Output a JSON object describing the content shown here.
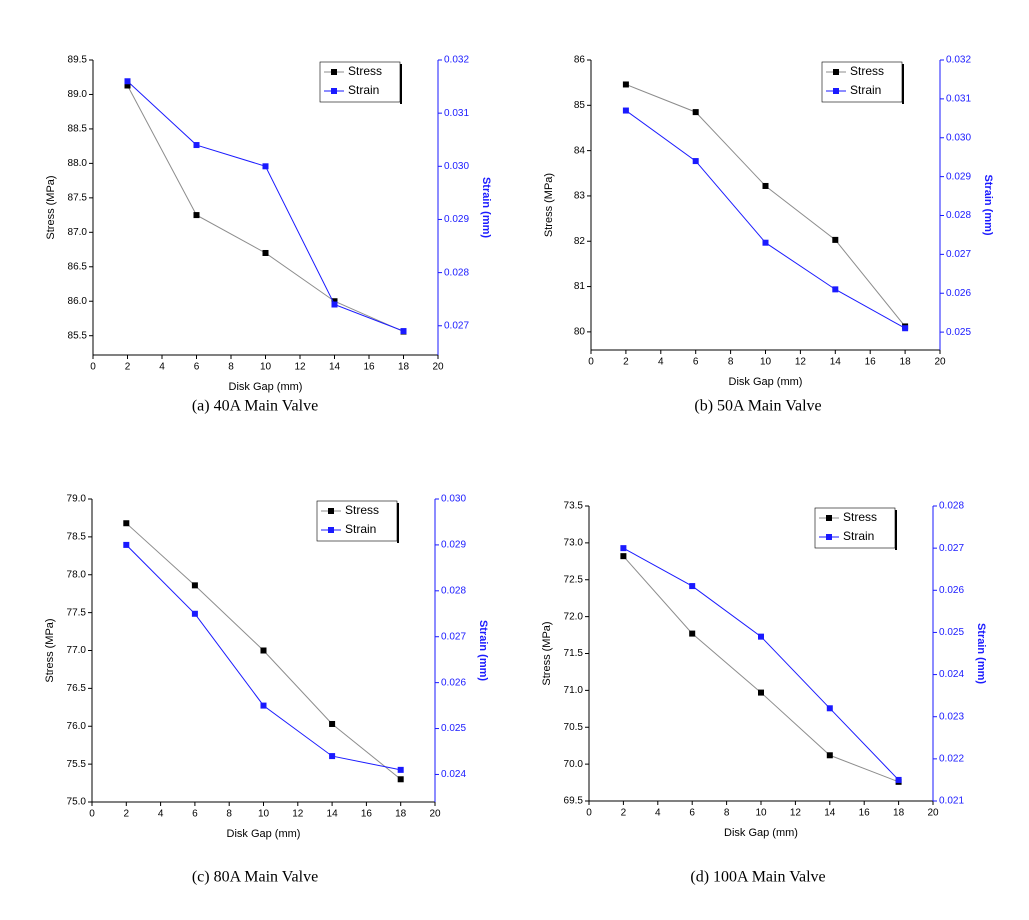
{
  "chart_data": [
    {
      "type": "line",
      "caption": "(a) 40A Main Valve",
      "xlabel": "Disk Gap (mm)",
      "ylabel": "Stress (MPa)",
      "y2label": "Strain (mm)",
      "x": [
        2,
        6,
        10,
        14,
        18
      ],
      "xlim": [
        0,
        20
      ],
      "xticks": [
        0,
        2,
        4,
        6,
        8,
        10,
        12,
        14,
        16,
        18,
        20
      ],
      "ylim": [
        85.22,
        89.5
      ],
      "yticks": [
        85.5,
        {
          "value": 86,
          "label": "86.0"
        },
        86.5,
        {
          "value": 87,
          "label": "87.0"
        },
        87.5,
        {
          "value": 88,
          "label": "88.0"
        },
        88.5,
        {
          "value": 89,
          "label": "89.0"
        },
        89.5
      ],
      "y2lim": [
        0.02645,
        0.032
      ],
      "y2ticks": [
        0.027,
        0.028,
        0.029,
        {
          "value": 0.03,
          "label": "0.030"
        },
        0.031,
        0.032
      ],
      "legend": "upper right",
      "series": [
        {
          "name": "Stress",
          "color": "#000000",
          "values": [
            89.13,
            87.25,
            86.7,
            86.0,
            85.56
          ]
        },
        {
          "name": "Strain",
          "color": "#1a1aff",
          "axis": "y2",
          "values": [
            0.0316,
            0.0304,
            0.03,
            0.0274,
            0.0269
          ]
        }
      ]
    },
    {
      "type": "line",
      "caption": "(b) 50A Main Valve",
      "xlabel": "Disk Gap (mm)",
      "ylabel": "Stress (MPa)",
      "y2label": "Strain (mm)",
      "x": [
        2,
        6,
        10,
        14,
        18
      ],
      "xlim": [
        0,
        20
      ],
      "xticks": [
        0,
        2,
        4,
        6,
        8,
        10,
        12,
        14,
        16,
        18,
        20
      ],
      "ylim": [
        79.6,
        86
      ],
      "yticks": [
        80,
        81,
        82,
        83,
        84,
        85,
        86
      ],
      "y2lim": [
        0.02454,
        0.032
      ],
      "y2ticks": [
        0.025,
        0.026,
        0.027,
        0.028,
        0.029,
        {
          "value": 0.03,
          "label": "0.030"
        },
        0.031,
        0.032
      ],
      "legend": "upper right",
      "series": [
        {
          "name": "Stress",
          "color": "#000000",
          "values": [
            85.46,
            84.85,
            83.22,
            82.03,
            80.12
          ]
        },
        {
          "name": "Strain",
          "color": "#1a1aff",
          "axis": "y2",
          "values": [
            0.0307,
            0.0294,
            0.0273,
            0.0261,
            0.0251
          ]
        }
      ]
    },
    {
      "type": "line",
      "caption": "(c) 80A Main Valve",
      "xlabel": "Disk Gap (mm)",
      "ylabel": "Stress (MPa)",
      "y2label": "Strain (mm)",
      "x": [
        2,
        6,
        10,
        14,
        18
      ],
      "xlim": [
        0,
        20
      ],
      "xticks": [
        0,
        2,
        4,
        6,
        8,
        10,
        12,
        14,
        16,
        18,
        20
      ],
      "ylim": [
        75,
        79
      ],
      "yticks": [
        {
          "value": 75,
          "label": "75.0"
        },
        75.5,
        {
          "value": 76,
          "label": "76.0"
        },
        76.5,
        {
          "value": 77,
          "label": "77.0"
        },
        77.5,
        {
          "value": 78,
          "label": "78.0"
        },
        78.5,
        {
          "value": 79,
          "label": "79.0"
        }
      ],
      "y2lim": [
        0.0234,
        0.03
      ],
      "y2ticks": [
        0.024,
        0.025,
        0.026,
        0.027,
        0.028,
        0.029,
        {
          "value": 0.03,
          "label": "0.030"
        }
      ],
      "legend": "upper right",
      "series": [
        {
          "name": "Stress",
          "color": "#000000",
          "values": [
            78.68,
            77.86,
            77.0,
            76.03,
            75.3
          ]
        },
        {
          "name": "Strain",
          "color": "#1a1aff",
          "axis": "y2",
          "values": [
            0.029,
            0.0275,
            0.0255,
            0.0244,
            0.0241
          ]
        }
      ]
    },
    {
      "type": "line",
      "caption": "(d) 100A Main Valve",
      "xlabel": "Disk Gap (mm)",
      "ylabel": "Stress (MPa)",
      "y2label": "Strain (mm)",
      "x": [
        2,
        6,
        10,
        14,
        18
      ],
      "xlim": [
        0,
        20
      ],
      "xticks": [
        0,
        2,
        4,
        6,
        8,
        10,
        12,
        14,
        16,
        18,
        20
      ],
      "ylim": [
        69.5,
        73.5
      ],
      "yticks": [
        69.5,
        {
          "value": 70,
          "label": "70.0"
        },
        70.5,
        {
          "value": 71,
          "label": "71.0"
        },
        71.5,
        {
          "value": 72,
          "label": "72.0"
        },
        72.5,
        {
          "value": 73,
          "label": "73.0"
        },
        73.5
      ],
      "y2lim": [
        0.021,
        0.028
      ],
      "y2ticks": [
        0.021,
        0.022,
        0.023,
        0.024,
        0.025,
        0.026,
        0.027,
        0.028
      ],
      "legend": "upper right",
      "series": [
        {
          "name": "Stress",
          "color": "#000000",
          "values": [
            72.82,
            71.77,
            70.97,
            70.12,
            69.76
          ]
        },
        {
          "name": "Strain",
          "color": "#1a1aff",
          "axis": "y2",
          "values": [
            0.027,
            0.0261,
            0.0249,
            0.0232,
            0.0215
          ]
        }
      ]
    }
  ]
}
